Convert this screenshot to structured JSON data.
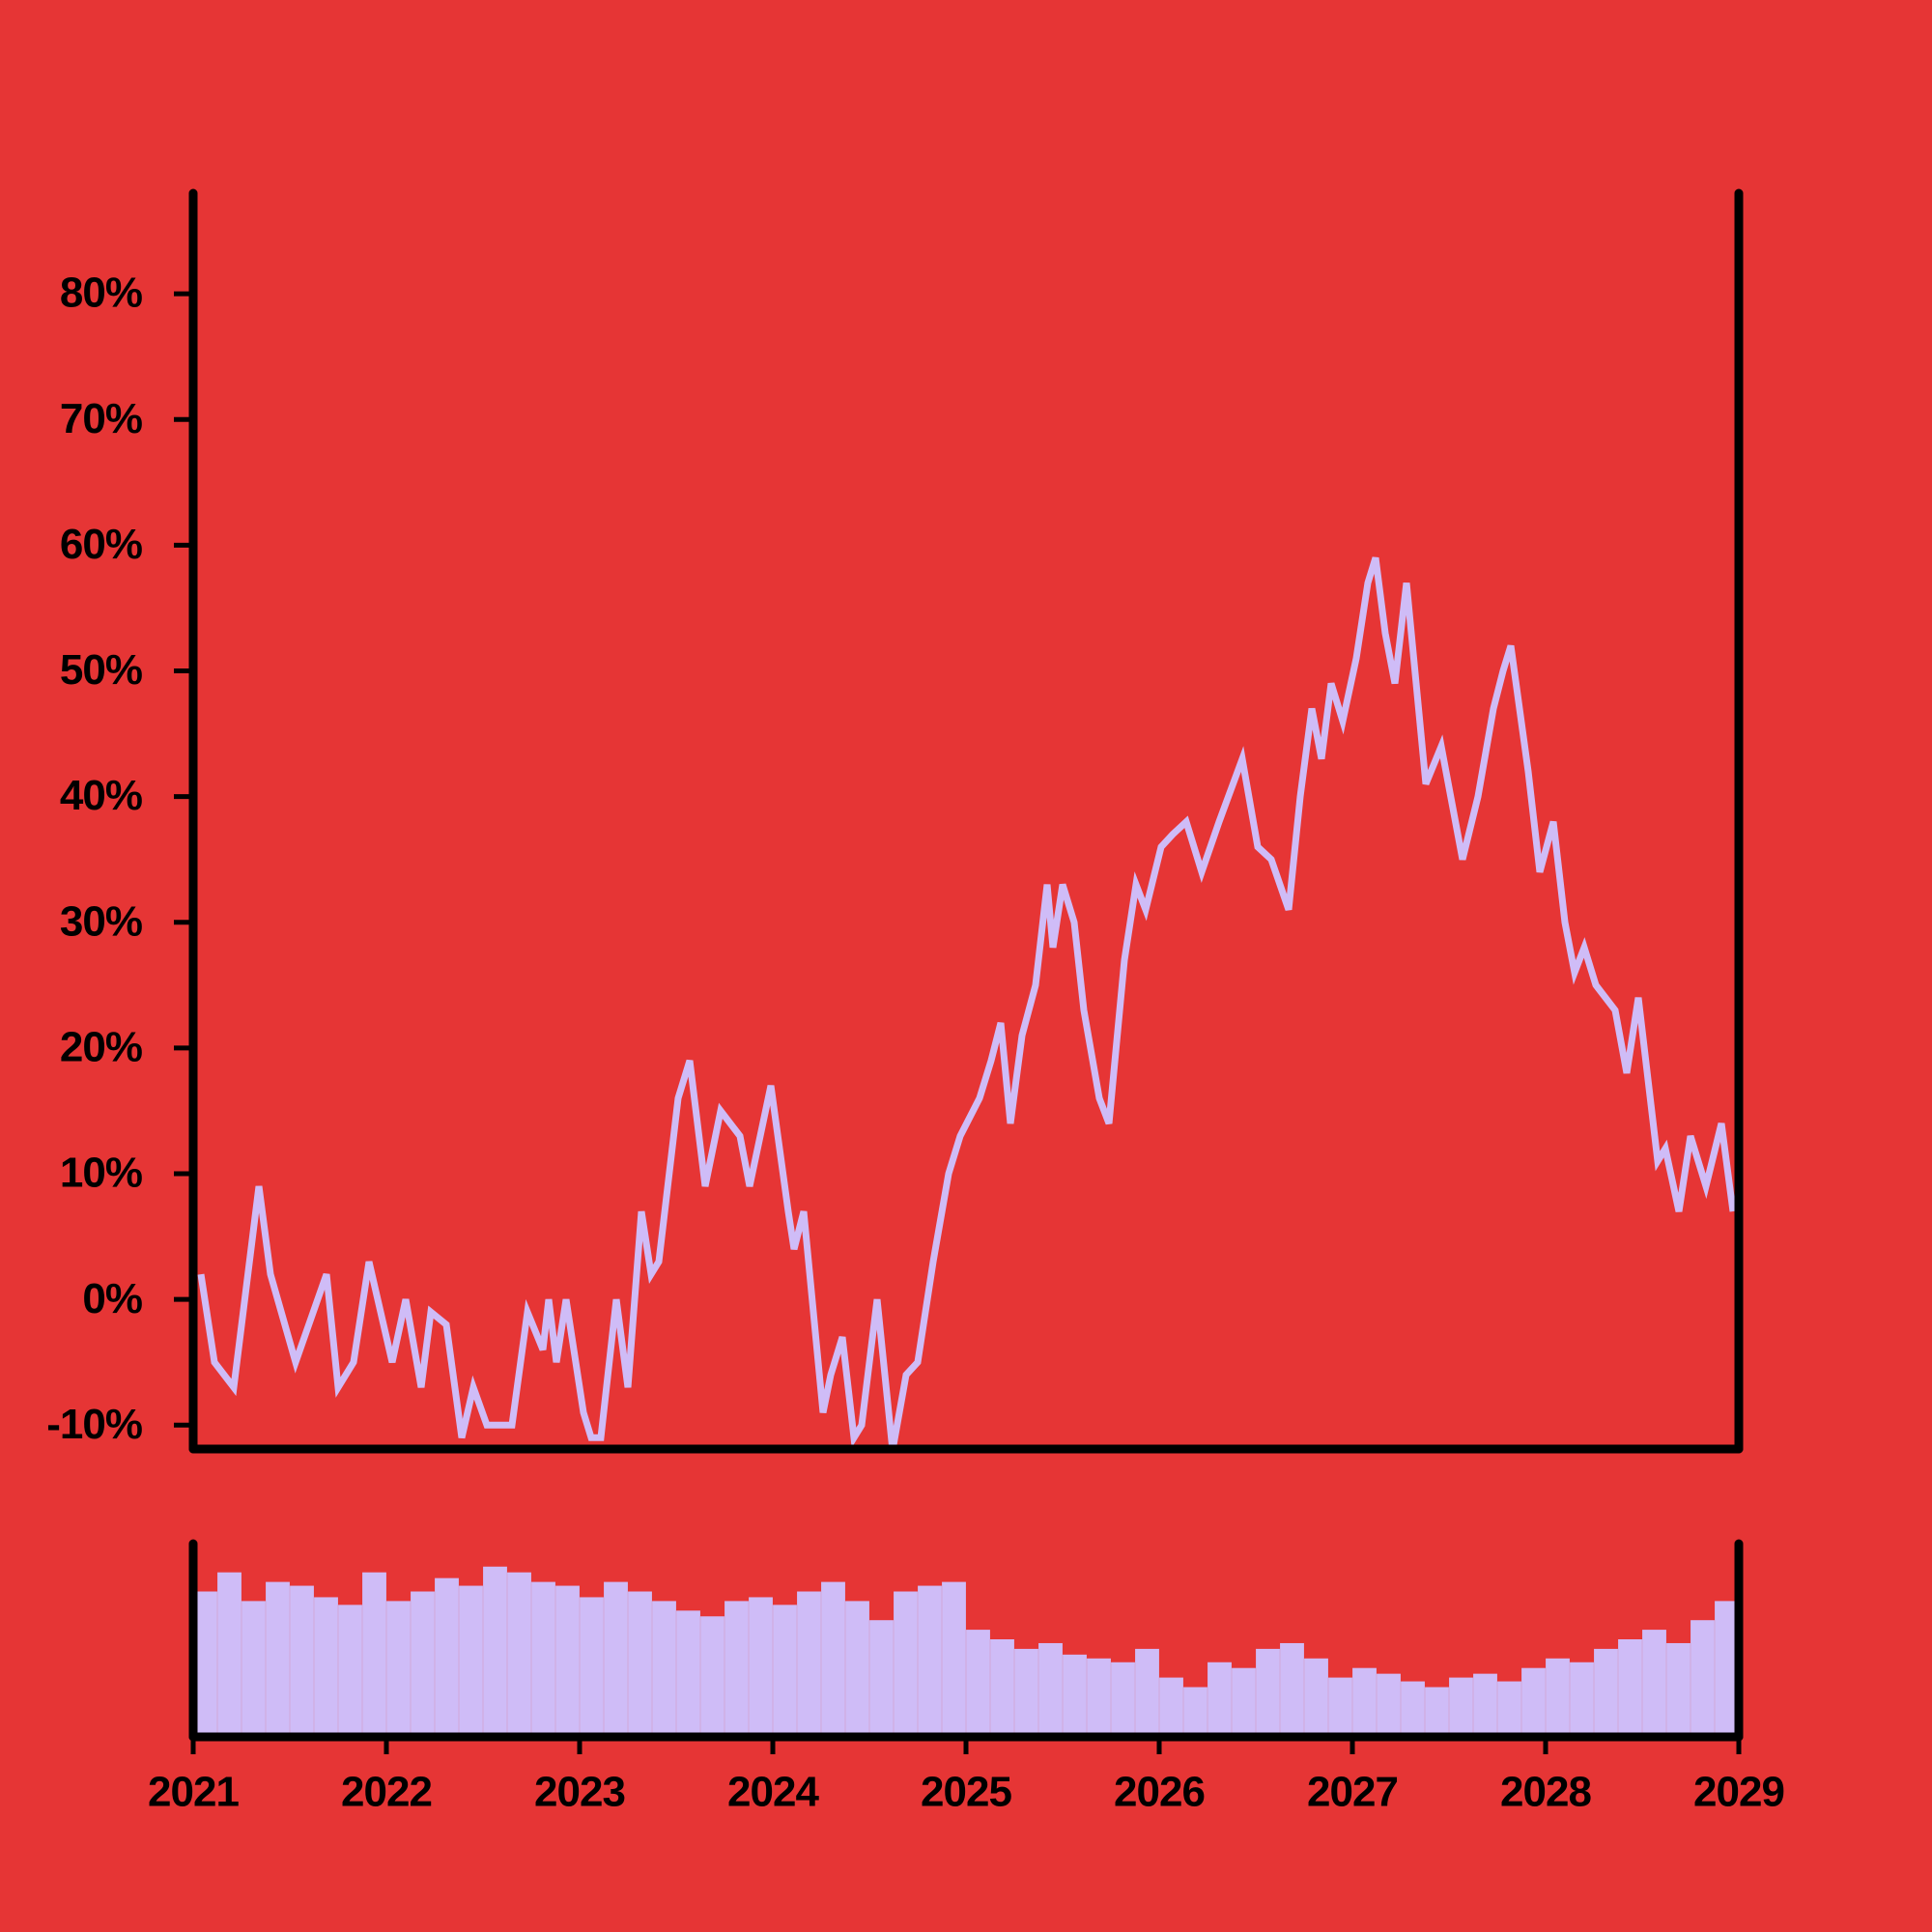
{
  "chart_data": [
    {
      "type": "line",
      "color": "#cfbcf7",
      "x": [
        2021.04,
        2021.11,
        2021.21,
        2021.34,
        2021.4,
        2021.53,
        2021.69,
        2021.75,
        2021.83,
        2021.91,
        2022.03,
        2022.1,
        2022.18,
        2022.23,
        2022.31,
        2022.39,
        2022.45,
        2022.52,
        2022.65,
        2022.73,
        2022.81,
        2022.84,
        2022.88,
        2022.93,
        2023.02,
        2023.06,
        2023.11,
        2023.19,
        2023.25,
        2023.32,
        2023.37,
        2023.41,
        2023.51,
        2023.57,
        2023.65,
        2023.73,
        2023.83,
        2023.88,
        2023.99,
        2024.08,
        2024.11,
        2024.16,
        2024.26,
        2024.3,
        2024.36,
        2024.42,
        2024.46,
        2024.54,
        2024.62,
        2024.69,
        2024.75,
        2024.83,
        2024.91,
        2024.97,
        2025.07,
        2025.13,
        2025.18,
        2025.23,
        2025.29,
        2025.36,
        2025.42,
        2025.45,
        2025.5,
        2025.56,
        2025.61,
        2025.69,
        2025.74,
        2025.82,
        2025.88,
        2025.93,
        2026.01,
        2026.07,
        2026.14,
        2026.22,
        2026.31,
        2026.43,
        2026.51,
        2026.58,
        2026.67,
        2026.73,
        2026.79,
        2026.84,
        2026.89,
        2026.95,
        2027.02,
        2027.08,
        2027.12,
        2027.17,
        2027.22,
        2027.28,
        2027.38,
        2027.46,
        2027.57,
        2027.65,
        2027.73,
        2027.78,
        2027.82,
        2027.91,
        2027.97,
        2028.04,
        2028.1,
        2028.15,
        2028.2,
        2028.26,
        2028.36,
        2028.42,
        2028.48,
        2028.58,
        2028.62,
        2028.69,
        2028.75,
        2028.83,
        2028.91,
        2028.97
      ],
      "values": [
        2,
        -5,
        -7,
        9,
        2,
        -5,
        2,
        -7,
        -5,
        3,
        -5,
        0,
        -7,
        -1,
        -2,
        -11,
        -7,
        -10,
        -10,
        -1,
        -4,
        0,
        -5,
        0,
        -9,
        -11,
        -11,
        0,
        -7,
        7,
        2,
        3,
        16,
        19,
        9,
        15,
        13,
        9,
        17,
        7,
        4,
        7,
        -9,
        -6,
        -3,
        -11,
        -10,
        0,
        -12,
        -6,
        -5,
        3,
        10,
        13,
        16,
        19,
        22,
        14,
        21,
        25,
        33,
        28,
        33,
        30,
        23,
        16,
        14,
        27,
        33,
        31,
        36,
        37,
        38,
        34,
        38,
        43,
        36,
        35,
        31,
        40,
        47,
        43,
        49,
        46,
        51,
        57,
        59,
        53,
        49,
        57,
        41,
        44,
        35,
        40,
        47,
        50,
        52,
        42,
        34,
        38,
        30,
        26,
        28,
        25,
        23,
        18,
        24,
        11,
        12,
        7,
        13,
        9,
        14,
        7
      ],
      "xlim": [
        2021,
        2029
      ],
      "ylim": [
        -11.9,
        88
      ],
      "yticks": [
        {
          "value": -10,
          "label": "-10%"
        },
        {
          "value": 0,
          "label": "0%"
        },
        {
          "value": 10,
          "label": "10%"
        },
        {
          "value": 20,
          "label": "20%"
        },
        {
          "value": 30,
          "label": "30%"
        },
        {
          "value": 40,
          "label": "40%"
        },
        {
          "value": 50,
          "label": "50%"
        },
        {
          "value": 60,
          "label": "60%"
        },
        {
          "value": 70,
          "label": "70%"
        },
        {
          "value": 80,
          "label": "80%"
        }
      ]
    },
    {
      "type": "bar",
      "color": "#cfbcf7",
      "x": [
        2021.0625,
        2021.1875,
        2021.3125,
        2021.4375,
        2021.5625,
        2021.6875,
        2021.8125,
        2021.9375,
        2022.0625,
        2022.1875,
        2022.3125,
        2022.4375,
        2022.5625,
        2022.6875,
        2022.8125,
        2022.9375,
        2023.0625,
        2023.1875,
        2023.3125,
        2023.4375,
        2023.5625,
        2023.6875,
        2023.8125,
        2023.9375,
        2024.0625,
        2024.1875,
        2024.3125,
        2024.4375,
        2024.5625,
        2024.6875,
        2024.8125,
        2024.9375,
        2025.0625,
        2025.1875,
        2025.3125,
        2025.4375,
        2025.5625,
        2025.6875,
        2025.8125,
        2025.9375,
        2026.0625,
        2026.1875,
        2026.3125,
        2026.4375,
        2026.5625,
        2026.6875,
        2026.8125,
        2026.9375,
        2027.0625,
        2027.1875,
        2027.3125,
        2027.4375,
        2027.5625,
        2027.6875,
        2027.8125,
        2027.9375,
        2028.0625,
        2028.1875,
        2028.3125,
        2028.4375,
        2028.5625,
        2028.6875,
        2028.8125,
        2028.9375
      ],
      "values": [
        75,
        85,
        70,
        80,
        78,
        72,
        68,
        85,
        70,
        75,
        82,
        78,
        88,
        85,
        80,
        78,
        72,
        80,
        75,
        70,
        65,
        62,
        70,
        72,
        68,
        75,
        80,
        70,
        60,
        75,
        78,
        80,
        55,
        50,
        45,
        48,
        42,
        40,
        38,
        45,
        30,
        25,
        38,
        35,
        45,
        48,
        40,
        30,
        35,
        32,
        28,
        25,
        30,
        32,
        28,
        35,
        40,
        38,
        45,
        50,
        55,
        48,
        60,
        70
      ],
      "xlim": [
        2021,
        2029
      ],
      "ylim": [
        0,
        100
      ],
      "xticks": [
        2021,
        2022,
        2023,
        2024,
        2025,
        2026,
        2027,
        2028,
        2029
      ]
    }
  ]
}
